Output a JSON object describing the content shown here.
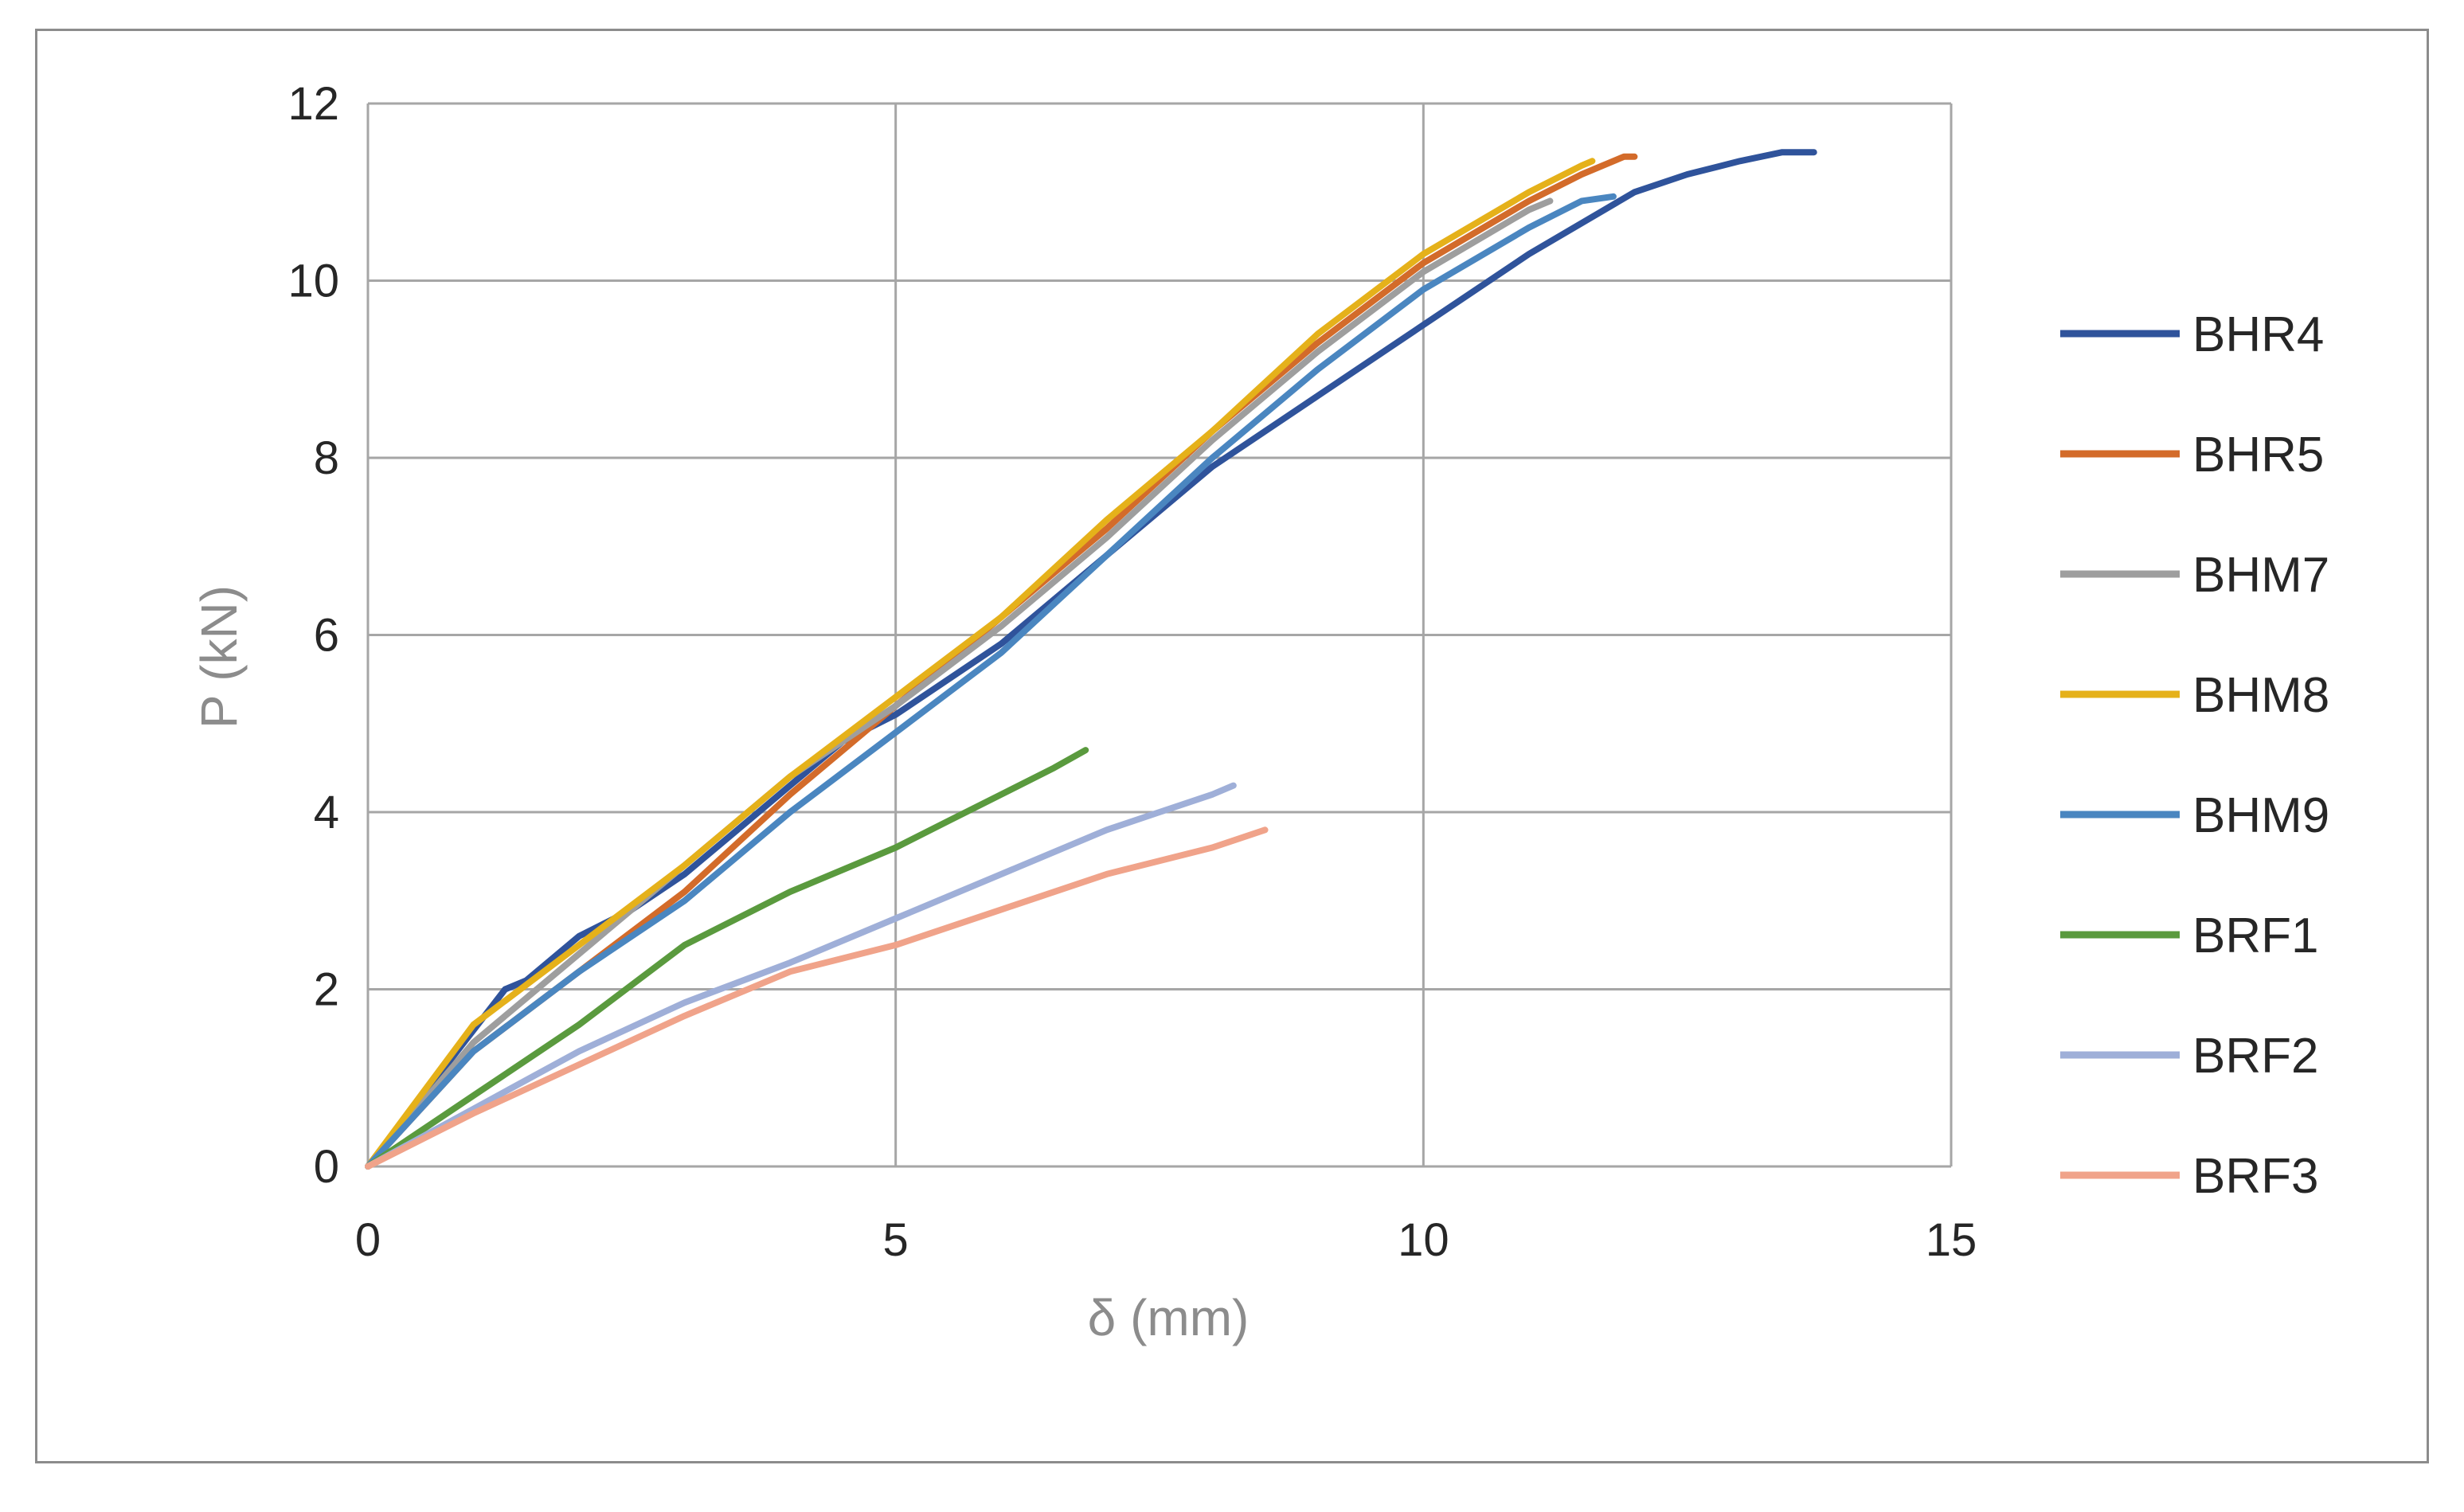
{
  "chart_data": {
    "type": "line",
    "title": "",
    "xlabel": "δ (mm)",
    "ylabel": "P (kN)",
    "xlim": [
      0,
      15
    ],
    "ylim": [
      0,
      12
    ],
    "xticks": [
      "0",
      "5",
      "10",
      "15"
    ],
    "yticks": [
      "0",
      "2",
      "4",
      "6",
      "8",
      "10",
      "12"
    ],
    "grid": true,
    "legend_position": "right",
    "series": [
      {
        "name": "BHR4",
        "color": "#2f539b",
        "points": [
          [
            0,
            0
          ],
          [
            1.3,
            2.0
          ],
          [
            1.5,
            2.1
          ],
          [
            2,
            2.6
          ],
          [
            2.5,
            2.9
          ],
          [
            3,
            3.3
          ],
          [
            3.5,
            3.8
          ],
          [
            4,
            4.3
          ],
          [
            4.5,
            4.8
          ],
          [
            5,
            5.1
          ],
          [
            6,
            5.9
          ],
          [
            7,
            6.9
          ],
          [
            8,
            7.9
          ],
          [
            9,
            8.7
          ],
          [
            10,
            9.5
          ],
          [
            11,
            10.3
          ],
          [
            12,
            11.0
          ],
          [
            12.5,
            11.2
          ],
          [
            13,
            11.35
          ],
          [
            13.4,
            11.45
          ],
          [
            13.7,
            11.45
          ]
        ]
      },
      {
        "name": "BHR5",
        "color": "#d36b2a",
        "points": [
          [
            0,
            0
          ],
          [
            1,
            1.3
          ],
          [
            2,
            2.2
          ],
          [
            3,
            3.1
          ],
          [
            4,
            4.2
          ],
          [
            5,
            5.2
          ],
          [
            6,
            6.2
          ],
          [
            7,
            7.2
          ],
          [
            8,
            8.3
          ],
          [
            9,
            9.3
          ],
          [
            10,
            10.2
          ],
          [
            11,
            10.9
          ],
          [
            11.5,
            11.2
          ],
          [
            11.9,
            11.4
          ],
          [
            12,
            11.4
          ]
        ]
      },
      {
        "name": "BHM7",
        "color": "#9e9e9e",
        "points": [
          [
            0,
            0
          ],
          [
            1,
            1.4
          ],
          [
            2,
            2.4
          ],
          [
            3,
            3.4
          ],
          [
            4,
            4.4
          ],
          [
            5,
            5.2
          ],
          [
            6,
            6.1
          ],
          [
            7,
            7.1
          ],
          [
            8,
            8.2
          ],
          [
            9,
            9.2
          ],
          [
            10,
            10.1
          ],
          [
            11,
            10.8
          ],
          [
            11.2,
            10.9
          ]
        ]
      },
      {
        "name": "BHM8",
        "color": "#e5b11a",
        "points": [
          [
            0,
            0
          ],
          [
            1,
            1.6
          ],
          [
            2,
            2.5
          ],
          [
            3,
            3.4
          ],
          [
            4,
            4.4
          ],
          [
            5,
            5.3
          ],
          [
            6,
            6.2
          ],
          [
            7,
            7.3
          ],
          [
            8,
            8.3
          ],
          [
            9,
            9.4
          ],
          [
            10,
            10.3
          ],
          [
            11,
            11.0
          ],
          [
            11.5,
            11.3
          ],
          [
            11.6,
            11.35
          ]
        ]
      },
      {
        "name": "BHM9",
        "color": "#4a86c0",
        "points": [
          [
            0,
            0
          ],
          [
            1,
            1.3
          ],
          [
            2,
            2.2
          ],
          [
            3,
            3.0
          ],
          [
            4,
            4.0
          ],
          [
            5,
            4.9
          ],
          [
            6,
            5.8
          ],
          [
            7,
            6.9
          ],
          [
            8,
            8.0
          ],
          [
            9,
            9.0
          ],
          [
            10,
            9.9
          ],
          [
            11,
            10.6
          ],
          [
            11.5,
            10.9
          ],
          [
            11.8,
            10.95
          ]
        ]
      },
      {
        "name": "BRF1",
        "color": "#5a9a3e",
        "points": [
          [
            0,
            0
          ],
          [
            1,
            0.8
          ],
          [
            2,
            1.6
          ],
          [
            3,
            2.5
          ],
          [
            4,
            3.1
          ],
          [
            5,
            3.6
          ],
          [
            5.5,
            3.9
          ],
          [
            6,
            4.2
          ],
          [
            6.5,
            4.5
          ],
          [
            6.8,
            4.7
          ]
        ]
      },
      {
        "name": "BRF2",
        "color": "#9fafd8",
        "points": [
          [
            0,
            0
          ],
          [
            1,
            0.65
          ],
          [
            2,
            1.3
          ],
          [
            3,
            1.85
          ],
          [
            4,
            2.3
          ],
          [
            5,
            2.8
          ],
          [
            6,
            3.3
          ],
          [
            7,
            3.8
          ],
          [
            7.5,
            4.0
          ],
          [
            8,
            4.2
          ],
          [
            8.2,
            4.3
          ]
        ]
      },
      {
        "name": "BRF3",
        "color": "#f0a38a",
        "points": [
          [
            0,
            0
          ],
          [
            1,
            0.6
          ],
          [
            2,
            1.15
          ],
          [
            3,
            1.7
          ],
          [
            4,
            2.2
          ],
          [
            5,
            2.5
          ],
          [
            6,
            2.9
          ],
          [
            7,
            3.3
          ],
          [
            8,
            3.6
          ],
          [
            8.5,
            3.8
          ]
        ]
      }
    ]
  }
}
